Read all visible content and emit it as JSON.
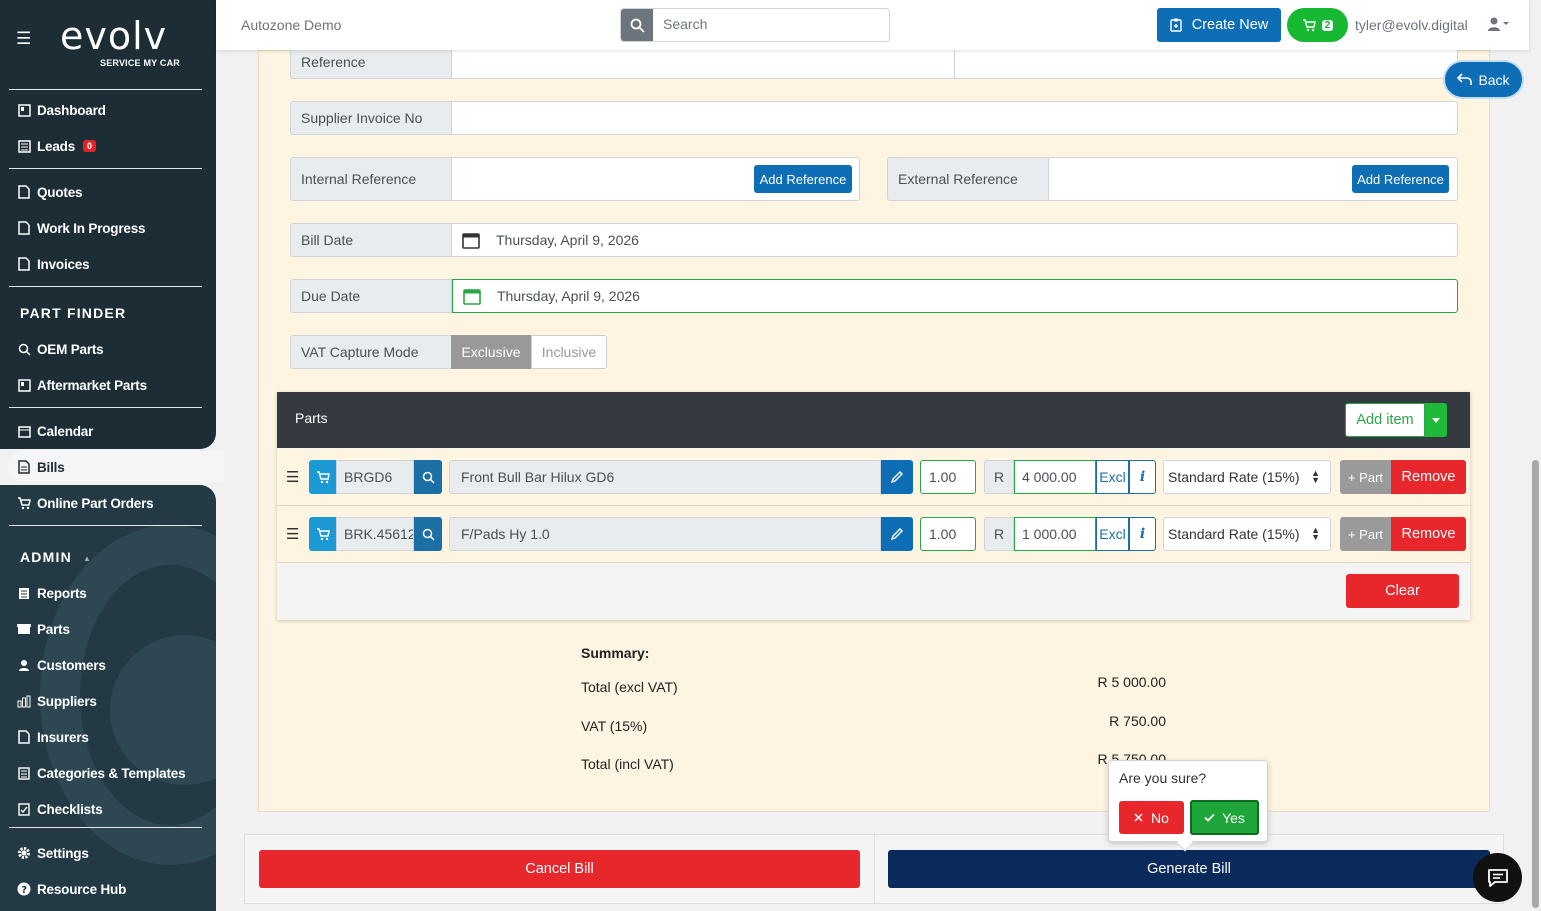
{
  "sidebar": {
    "logo_word": "evolv",
    "logo_sub": "SERVICE MY CAR",
    "items": {
      "dashboard": "Dashboard",
      "leads": "Leads",
      "leads_badge": "0",
      "quotes": "Quotes",
      "wip": "Work In Progress",
      "invoices": "Invoices",
      "part_finder_head": "PART FINDER",
      "oem_parts": "OEM Parts",
      "aftermarket_parts": "Aftermarket Parts",
      "calendar": "Calendar",
      "bills": "Bills",
      "online_part_orders": "Online Part Orders",
      "admin_head": "ADMIN",
      "admin_arrow": "▲",
      "reports": "Reports",
      "parts": "Parts",
      "customers": "Customers",
      "suppliers": "Suppliers",
      "insurers": "Insurers",
      "categories": "Categories & Templates",
      "checklists": "Checklists",
      "settings": "Settings",
      "resource_hub": "Resource Hub"
    }
  },
  "header": {
    "company": "Autozone Demo",
    "search_placeholder": "Search",
    "create_new": "Create New",
    "cart_count": "2",
    "user_email": "tyler@evolv.digital"
  },
  "back_label": "Back",
  "form": {
    "reference_label": "Reference",
    "supplier_invoice_label": "Supplier Invoice No",
    "supplier_invoice_value": "",
    "internal_ref_label": "Internal Reference",
    "external_ref_label": "External Reference",
    "add_reference": "Add Reference",
    "bill_date_label": "Bill Date",
    "bill_date_value": "Thursday, April 9, 2026",
    "due_date_label": "Due Date",
    "due_date_value": "Thursday, April 9, 2026",
    "vat_mode_label": "VAT Capture Mode",
    "vat_exclusive": "Exclusive",
    "vat_inclusive": "Inclusive"
  },
  "parts": {
    "title": "Parts",
    "add_item": "Add item",
    "rows": [
      {
        "code": "BRGD6",
        "description": "Front Bull Bar Hilux GD6",
        "qty": "1.00",
        "currency": "R",
        "price": "4 000.00",
        "excl": "Excl",
        "info": "i",
        "rate": "Standard Rate (15%)",
        "plus_part": "+ Part",
        "remove": "Remove"
      },
      {
        "code": "BRK.45612",
        "description": "F/Pads Hy 1.0",
        "qty": "1.00",
        "currency": "R",
        "price": "1 000.00",
        "excl": "Excl",
        "info": "i",
        "rate": "Standard Rate (15%)",
        "plus_part": "+ Part",
        "remove": "Remove"
      }
    ],
    "clear": "Clear"
  },
  "summary": {
    "title": "Summary:",
    "total_excl_label": "Total (excl VAT)",
    "total_excl_value": "R 5 000.00",
    "vat_label": "VAT (15%)",
    "vat_value": "R 750.00",
    "total_incl_label": "Total (incl VAT)",
    "total_incl_value": "R 5 750.00"
  },
  "confirm": {
    "question": "Are you sure?",
    "no": "No",
    "yes": "Yes"
  },
  "footer": {
    "cancel": "Cancel Bill",
    "generate": "Generate Bill"
  }
}
